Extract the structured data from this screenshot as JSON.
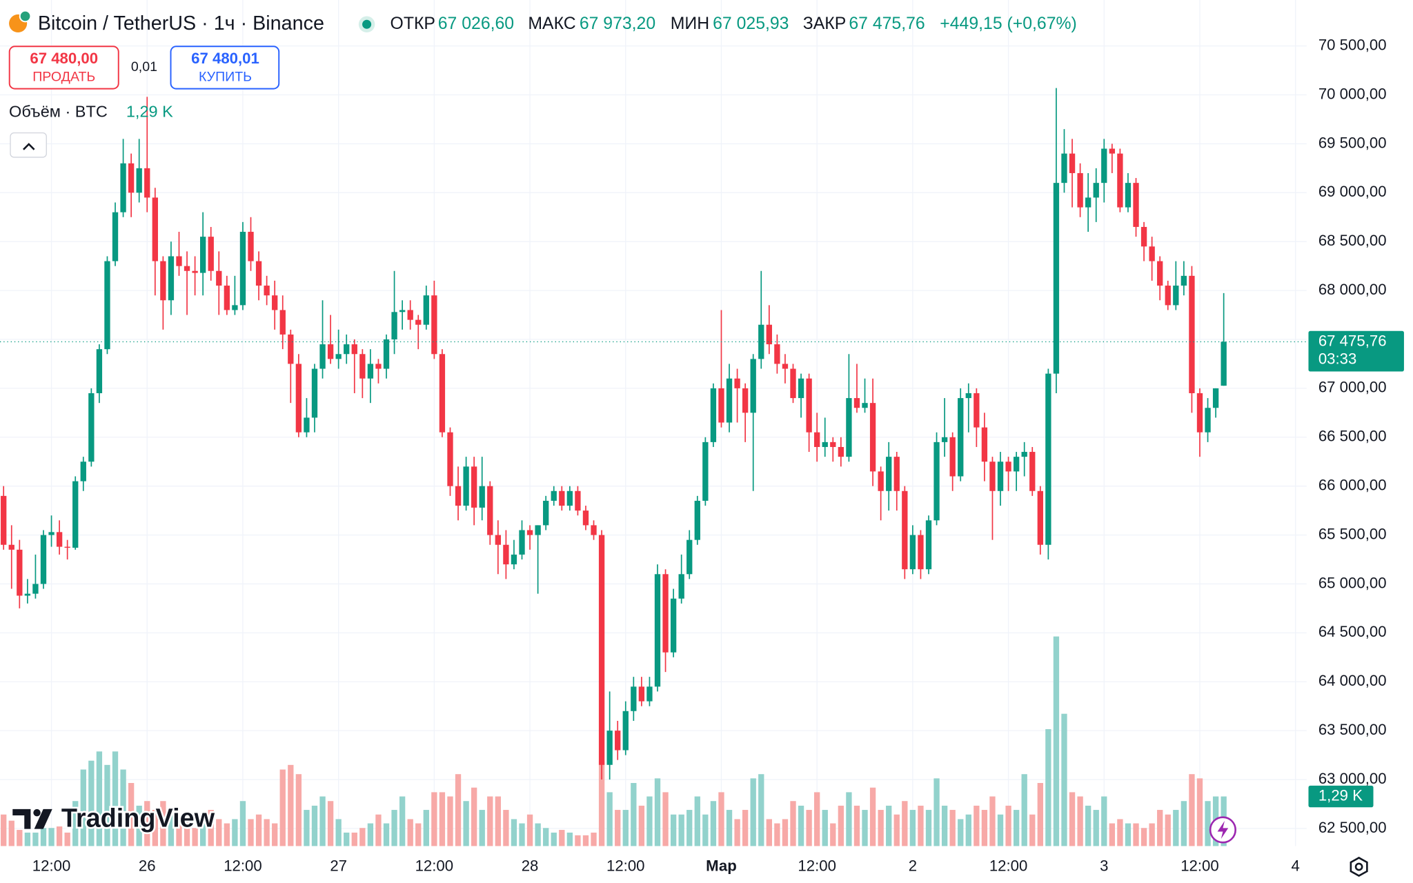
{
  "header": {
    "symbol": "Bitcoin / TetherUS · 1ч · Binance",
    "open_label": "ОТКР",
    "open": "67 026,60",
    "high_label": "МАКС",
    "high": "67 973,20",
    "low_label": "МИН",
    "low": "67 025,93",
    "close_label": "ЗАКР",
    "close": "67 475,76",
    "change": "+449,15 (+0,67%)",
    "sell_price": "67 480,00",
    "sell_label": "ПРОДАТЬ",
    "spread": "0,01",
    "buy_price": "67 480,01",
    "buy_label": "КУПИТЬ",
    "volume_title": "Объём · BTC",
    "volume_value": "1,29 K",
    "brand": "TradingView"
  },
  "chart_data": {
    "type": "candlestick",
    "up_color": "#089981",
    "down_color": "#f23645",
    "volume_up_color": "#92d2cc",
    "volume_down_color": "#f7a9a7",
    "grid": true,
    "candles": [
      [
        65900,
        66000,
        65350,
        65400
      ],
      [
        65400,
        65600,
        64950,
        65350
      ],
      [
        65350,
        65450,
        64750,
        64880
      ],
      [
        64880,
        65050,
        64800,
        64900
      ],
      [
        64900,
        65300,
        64850,
        65000
      ],
      [
        65000,
        65550,
        64950,
        65500
      ],
      [
        65500,
        65700,
        65380,
        65530
      ],
      [
        65530,
        65650,
        65300,
        65380
      ],
      [
        65380,
        65450,
        65250,
        65370
      ],
      [
        65370,
        66100,
        65350,
        66050
      ],
      [
        66050,
        66300,
        65950,
        66250
      ],
      [
        66250,
        67000,
        66200,
        66950
      ],
      [
        66950,
        67450,
        66850,
        67400
      ],
      [
        67400,
        68350,
        67350,
        68300
      ],
      [
        68300,
        68900,
        68250,
        68800
      ],
      [
        68800,
        69550,
        68750,
        69300
      ],
      [
        69300,
        69400,
        68750,
        69000
      ],
      [
        69000,
        69550,
        68900,
        69250
      ],
      [
        69250,
        69980,
        68800,
        68950
      ],
      [
        68950,
        69050,
        67950,
        68300
      ],
      [
        68300,
        68350,
        67600,
        67900
      ],
      [
        67900,
        68500,
        67750,
        68350
      ],
      [
        68350,
        68600,
        68150,
        68250
      ],
      [
        68250,
        68400,
        67750,
        68200
      ],
      [
        68200,
        68350,
        67950,
        68180
      ],
      [
        68180,
        68800,
        67950,
        68550
      ],
      [
        68550,
        68650,
        68100,
        68200
      ],
      [
        68200,
        68400,
        67750,
        68050
      ],
      [
        68050,
        68150,
        67750,
        67800
      ],
      [
        67800,
        68150,
        67750,
        67850
      ],
      [
        67850,
        68700,
        67800,
        68600
      ],
      [
        68600,
        68750,
        68200,
        68300
      ],
      [
        68300,
        68400,
        67900,
        68050
      ],
      [
        68050,
        68150,
        67850,
        67950
      ],
      [
        67950,
        68100,
        67600,
        67800
      ],
      [
        67800,
        67950,
        67400,
        67550
      ],
      [
        67550,
        67600,
        66850,
        67250
      ],
      [
        67250,
        67350,
        66500,
        66550
      ],
      [
        66550,
        66900,
        66500,
        66700
      ],
      [
        66700,
        67250,
        66550,
        67200
      ],
      [
        67200,
        67900,
        67100,
        67450
      ],
      [
        67450,
        67750,
        67250,
        67300
      ],
      [
        67300,
        67600,
        67200,
        67350
      ],
      [
        67350,
        67550,
        67250,
        67450
      ],
      [
        67450,
        67500,
        66950,
        67350
      ],
      [
        67350,
        67400,
        66900,
        67100
      ],
      [
        67100,
        67400,
        66850,
        67250
      ],
      [
        67250,
        67300,
        67050,
        67200
      ],
      [
        67200,
        67550,
        67100,
        67500
      ],
      [
        67500,
        68200,
        67350,
        67780
      ],
      [
        67780,
        67900,
        67600,
        67800
      ],
      [
        67800,
        67900,
        67600,
        67700
      ],
      [
        67700,
        67750,
        67400,
        67650
      ],
      [
        67650,
        68050,
        67600,
        67950
      ],
      [
        67950,
        68100,
        67300,
        67350
      ],
      [
        67350,
        67400,
        66500,
        66550
      ],
      [
        66550,
        66600,
        65900,
        66000
      ],
      [
        66000,
        66200,
        65650,
        65800
      ],
      [
        65800,
        66300,
        65750,
        66200
      ],
      [
        66200,
        66300,
        65600,
        65780
      ],
      [
        65780,
        66300,
        65650,
        66000
      ],
      [
        66000,
        66050,
        65400,
        65500
      ],
      [
        65500,
        65650,
        65100,
        65400
      ],
      [
        65400,
        65550,
        65050,
        65200
      ],
      [
        65200,
        65450,
        65150,
        65300
      ],
      [
        65300,
        65650,
        65250,
        65550
      ],
      [
        65550,
        65600,
        65350,
        65500
      ],
      [
        65500,
        65600,
        64900,
        65600
      ],
      [
        65600,
        65900,
        65550,
        65850
      ],
      [
        65850,
        66000,
        65800,
        65950
      ],
      [
        65950,
        66000,
        65750,
        65800
      ],
      [
        65800,
        66000,
        65750,
        65950
      ],
      [
        65950,
        66000,
        65700,
        65750
      ],
      [
        65750,
        65800,
        65550,
        65600
      ],
      [
        65600,
        65650,
        65450,
        65500
      ],
      [
        65500,
        65550,
        63000,
        63150
      ],
      [
        63150,
        63900,
        63000,
        63500
      ],
      [
        63500,
        63600,
        63200,
        63300
      ],
      [
        63300,
        63800,
        63250,
        63700
      ],
      [
        63700,
        64050,
        63600,
        63950
      ],
      [
        63950,
        64050,
        63750,
        63800
      ],
      [
        63800,
        64050,
        63750,
        63950
      ],
      [
        63950,
        65200,
        63900,
        65100
      ],
      [
        65100,
        65150,
        64100,
        64300
      ],
      [
        64300,
        64950,
        64250,
        64850
      ],
      [
        64850,
        65300,
        64800,
        65100
      ],
      [
        65100,
        65550,
        65050,
        65450
      ],
      [
        65450,
        65900,
        65400,
        65850
      ],
      [
        65850,
        66500,
        65800,
        66450
      ],
      [
        66450,
        67050,
        66400,
        67000
      ],
      [
        67000,
        67800,
        66600,
        66650
      ],
      [
        66650,
        67250,
        66550,
        67100
      ],
      [
        67100,
        67200,
        66650,
        67000
      ],
      [
        67000,
        67050,
        66450,
        66750
      ],
      [
        66750,
        67350,
        65950,
        67300
      ],
      [
        67300,
        68200,
        67200,
        67650
      ],
      [
        67650,
        67850,
        67350,
        67450
      ],
      [
        67450,
        67550,
        67150,
        67250
      ],
      [
        67250,
        67350,
        67050,
        67200
      ],
      [
        67200,
        67250,
        66850,
        66900
      ],
      [
        66900,
        67150,
        66700,
        67100
      ],
      [
        67100,
        67150,
        66350,
        66550
      ],
      [
        66550,
        66750,
        66250,
        66400
      ],
      [
        66400,
        66700,
        66300,
        66450
      ],
      [
        66450,
        66500,
        66250,
        66400
      ],
      [
        66400,
        66500,
        66200,
        66300
      ],
      [
        66300,
        67350,
        66250,
        66900
      ],
      [
        66900,
        67250,
        66750,
        66800
      ],
      [
        66800,
        67100,
        66750,
        66850
      ],
      [
        66850,
        67100,
        66000,
        66150
      ],
      [
        66150,
        66200,
        65650,
        65950
      ],
      [
        65950,
        66450,
        65750,
        66300
      ],
      [
        66300,
        66350,
        65750,
        65950
      ],
      [
        65950,
        66000,
        65050,
        65150
      ],
      [
        65150,
        65600,
        65100,
        65500
      ],
      [
        65500,
        65550,
        65050,
        65150
      ],
      [
        65150,
        65700,
        65100,
        65650
      ],
      [
        65650,
        66550,
        65600,
        66450
      ],
      [
        66450,
        66900,
        66300,
        66500
      ],
      [
        66500,
        66550,
        65950,
        66100
      ],
      [
        66100,
        67000,
        66050,
        66900
      ],
      [
        66900,
        67050,
        66550,
        66950
      ],
      [
        66950,
        67000,
        66400,
        66600
      ],
      [
        66600,
        66750,
        66050,
        66250
      ],
      [
        66250,
        66300,
        65450,
        65950
      ],
      [
        65950,
        66350,
        65800,
        66250
      ],
      [
        66250,
        66300,
        65950,
        66150
      ],
      [
        66150,
        66350,
        65950,
        66300
      ],
      [
        66300,
        66450,
        66100,
        66350
      ],
      [
        66350,
        66400,
        65900,
        65950
      ],
      [
        65950,
        66000,
        65300,
        65400
      ],
      [
        65400,
        67200,
        65250,
        67150
      ],
      [
        67150,
        70070,
        66950,
        69100
      ],
      [
        69100,
        69650,
        69000,
        69400
      ],
      [
        69400,
        69550,
        68850,
        69200
      ],
      [
        69200,
        69300,
        68750,
        68850
      ],
      [
        68850,
        69200,
        68600,
        68950
      ],
      [
        68950,
        69250,
        68700,
        69100
      ],
      [
        69100,
        69550,
        68900,
        69450
      ],
      [
        69450,
        69500,
        69200,
        69400
      ],
      [
        69400,
        69450,
        68800,
        68850
      ],
      [
        68850,
        69200,
        68800,
        69100
      ],
      [
        69100,
        69150,
        68550,
        68650
      ],
      [
        68650,
        68700,
        68300,
        68450
      ],
      [
        68450,
        68550,
        68100,
        68300
      ],
      [
        68300,
        68350,
        67900,
        68050
      ],
      [
        68050,
        68100,
        67800,
        67850
      ],
      [
        67850,
        68300,
        67800,
        68050
      ],
      [
        68050,
        68300,
        67950,
        68150
      ],
      [
        68150,
        68250,
        66750,
        66950
      ],
      [
        66950,
        67000,
        66300,
        66550
      ],
      [
        66550,
        66900,
        66450,
        66800
      ],
      [
        66800,
        67000,
        66700,
        67000
      ],
      [
        67026.6,
        67973.2,
        67025.93,
        67475.76
      ]
    ],
    "volume": [
      820,
      660,
      420,
      350,
      350,
      470,
      470,
      510,
      350,
      1170,
      1990,
      2220,
      2460,
      2110,
      2460,
      1990,
      1640,
      1050,
      1170,
      940,
      1170,
      820,
      590,
      700,
      470,
      660,
      940,
      700,
      590,
      700,
      1170,
      700,
      820,
      700,
      590,
      1990,
      2110,
      1870,
      940,
      1050,
      1290,
      1170,
      700,
      350,
      350,
      470,
      590,
      820,
      590,
      940,
      1290,
      700,
      590,
      940,
      1400,
      1400,
      1290,
      1870,
      1170,
      1520,
      940,
      1290,
      1290,
      940,
      700,
      590,
      820,
      590,
      470,
      350,
      420,
      350,
      280,
      280,
      350,
      2220,
      1400,
      940,
      940,
      1640,
      1050,
      1290,
      1760,
      1400,
      820,
      820,
      940,
      1290,
      820,
      1170,
      1400,
      940,
      700,
      940,
      1760,
      1870,
      700,
      590,
      700,
      1170,
      1050,
      940,
      1400,
      940,
      590,
      1050,
      1400,
      1050,
      940,
      1520,
      940,
      1050,
      820,
      1170,
      940,
      1050,
      940,
      1760,
      1050,
      940,
      700,
      820,
      1050,
      940,
      1290,
      820,
      1050,
      940,
      1870,
      820,
      1640,
      3040,
      5450,
      3440,
      1400,
      1290,
      1050,
      940,
      1290,
      590,
      700,
      590,
      590,
      470,
      590,
      940,
      820,
      940,
      1170,
      1870,
      1760,
      1170,
      1290,
      1290
    ],
    "ylim": [
      62320,
      70970
    ],
    "volume_ylim": [
      0,
      22000
    ],
    "xlim": [
      -0.45,
      163.4
    ],
    "yticks": [
      {
        "value": 62500,
        "label": "62 500,00"
      },
      {
        "value": 63000,
        "label": "63 000,00"
      },
      {
        "value": 63500,
        "label": "63 500,00"
      },
      {
        "value": 64000,
        "label": "64 000,00"
      },
      {
        "value": 64500,
        "label": "64 500,00"
      },
      {
        "value": 65000,
        "label": "65 000,00"
      },
      {
        "value": 65500,
        "label": "65 500,00"
      },
      {
        "value": 66000,
        "label": "66 000,00"
      },
      {
        "value": 66500,
        "label": "66 500,00"
      },
      {
        "value": 67000,
        "label": "67 000,00"
      },
      {
        "value": 67500,
        "label": "67 500,00"
      },
      {
        "value": 68000,
        "label": "68 000,00"
      },
      {
        "value": 68500,
        "label": "68 500,00"
      },
      {
        "value": 69000,
        "label": "69 000,00"
      },
      {
        "value": 69500,
        "label": "69 500,00"
      },
      {
        "value": 70000,
        "label": "70 000,00"
      },
      {
        "value": 70500,
        "label": "70 500,00"
      }
    ],
    "xticks": [
      {
        "value": 6,
        "label": "12:00"
      },
      {
        "value": 18,
        "label": "26"
      },
      {
        "value": 30,
        "label": "12:00"
      },
      {
        "value": 42,
        "label": "27"
      },
      {
        "value": 54,
        "label": "12:00"
      },
      {
        "value": 66,
        "label": "28"
      },
      {
        "value": 78,
        "label": "12:00"
      },
      {
        "value": 90,
        "label": "Мар"
      },
      {
        "value": 102,
        "label": "12:00"
      },
      {
        "value": 114,
        "label": "2"
      },
      {
        "value": 126,
        "label": "12:00"
      },
      {
        "value": 138,
        "label": "3"
      },
      {
        "value": 150,
        "label": "12:00"
      },
      {
        "value": 162,
        "label": "4"
      }
    ],
    "last_price": {
      "value": 67475.76,
      "label": "67 475,76"
    },
    "countdown": "03:33",
    "volume_label": {
      "value": 1290,
      "label": "1,29 K"
    }
  }
}
